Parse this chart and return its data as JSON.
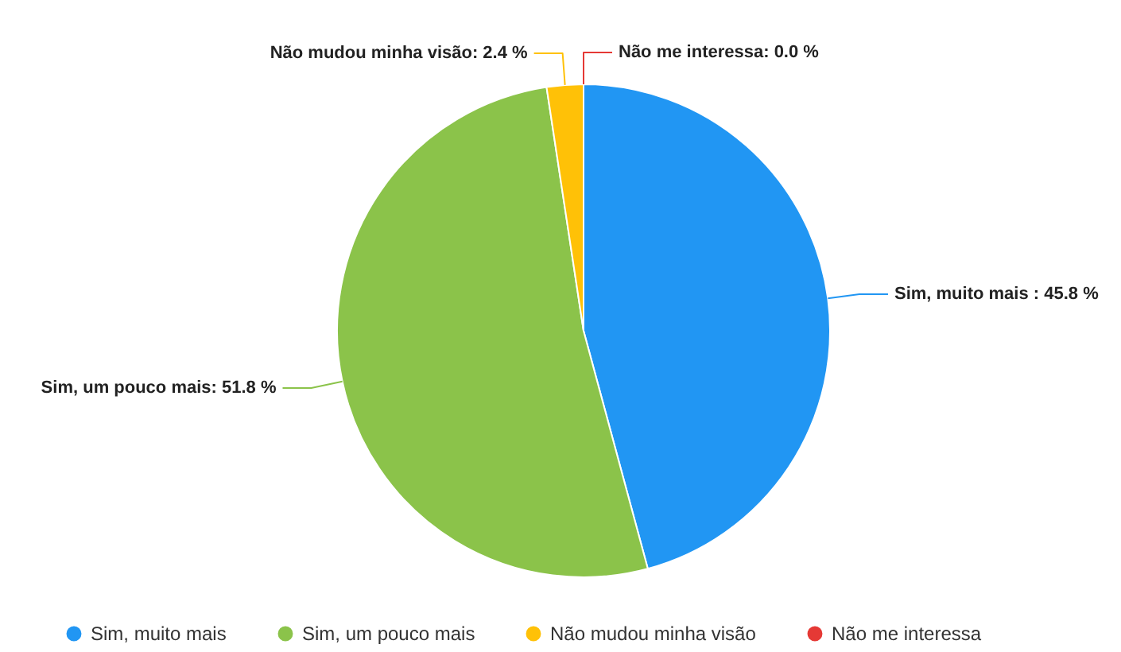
{
  "chart_data": {
    "type": "pie",
    "categories": [
      "Sim, muito mais",
      "Sim, um pouco mais",
      "Não mudou minha visão",
      "Não me interessa"
    ],
    "values": [
      45.8,
      51.8,
      2.4,
      0.0
    ],
    "colors": [
      "#2196f3",
      "#8bc34a",
      "#ffc107",
      "#e53935"
    ],
    "value_labels": [
      "Sim, muito mais : 45.8 %",
      "Sim, um pouco mais: 51.8 %",
      "Não mudou minha visão: 2.4 %",
      "Não me interessa: 0.0 %"
    ],
    "legend": "bottom"
  }
}
